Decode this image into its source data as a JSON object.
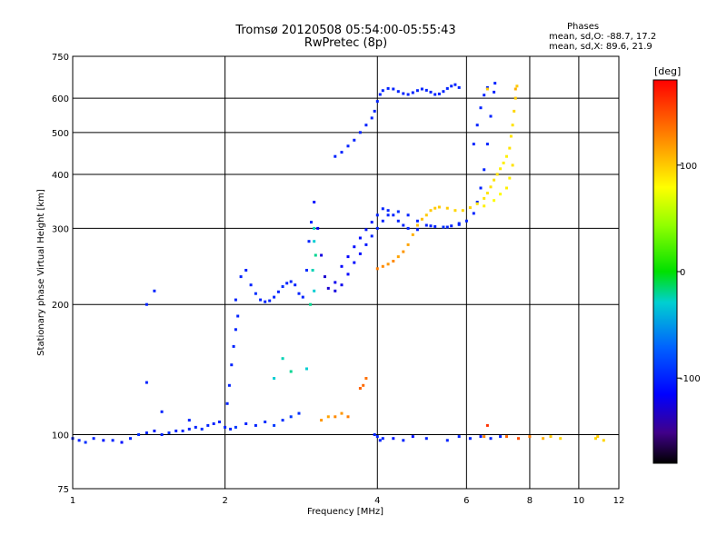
{
  "chart_data": {
    "type": "scatter",
    "title": "Tromsø 20120508 05:54:00-05:55:43",
    "subtitle": "RwPretec (8p)",
    "xlabel": "Frequency [MHz]",
    "ylabel": "Stationary phase Virtual Height [km]",
    "x_scale": "log",
    "y_scale": "log",
    "xlim": [
      1,
      12
    ],
    "ylim": [
      75,
      750
    ],
    "x_ticks": [
      1,
      2,
      4,
      6,
      8,
      10,
      12
    ],
    "y_ticks": [
      75,
      100,
      200,
      300,
      400,
      500,
      600,
      750
    ],
    "x_ticklabels": [
      "1",
      "2",
      "4",
      "6",
      "8",
      "10",
      "12"
    ],
    "y_ticklabels": [
      "75",
      "100",
      "200",
      "300",
      "400",
      "500",
      "600",
      "750"
    ],
    "grid": true,
    "stats": {
      "header": "Phases",
      "o_line": "mean, sd,O: -88.7, 17.2",
      "x_line": "mean, sd,X: 89.6, 21.9"
    },
    "colorbar": {
      "label": "[deg]",
      "range": [
        -180,
        180
      ],
      "ticks": [
        100,
        0,
        -100
      ],
      "ticklabels": [
        "100",
        "0",
        "-100"
      ],
      "colormap": "rainbow"
    },
    "series": [
      {
        "mode": "O",
        "points": [
          [
            1.0,
            98,
            -100
          ],
          [
            1.03,
            97,
            -100
          ],
          [
            1.06,
            96,
            -95
          ],
          [
            1.1,
            98,
            -100
          ],
          [
            1.15,
            97,
            -105
          ],
          [
            1.2,
            97,
            -100
          ],
          [
            1.25,
            96,
            -110
          ],
          [
            1.3,
            98,
            -100
          ],
          [
            1.35,
            100,
            -95
          ],
          [
            1.4,
            101,
            -100
          ],
          [
            1.45,
            102,
            -105
          ],
          [
            1.5,
            100,
            -100
          ],
          [
            1.55,
            101,
            -95
          ],
          [
            1.6,
            102,
            -100
          ],
          [
            1.65,
            102,
            -100
          ],
          [
            1.7,
            103,
            -100
          ],
          [
            1.75,
            104,
            -100
          ],
          [
            1.8,
            103,
            -95
          ],
          [
            1.85,
            105,
            -100
          ],
          [
            1.9,
            106,
            -100
          ],
          [
            1.95,
            107,
            -100
          ],
          [
            2.0,
            104,
            -100
          ],
          [
            2.05,
            103,
            -100
          ],
          [
            2.1,
            104,
            -90
          ],
          [
            2.2,
            106,
            -100
          ],
          [
            2.3,
            105,
            -100
          ],
          [
            2.4,
            107,
            -95
          ],
          [
            2.5,
            105,
            -90
          ],
          [
            2.6,
            108,
            -95
          ],
          [
            2.7,
            110,
            -90
          ],
          [
            2.8,
            112,
            -95
          ],
          [
            2.02,
            118,
            -100
          ],
          [
            2.04,
            130,
            -100
          ],
          [
            2.06,
            145,
            -100
          ],
          [
            2.08,
            160,
            -100
          ],
          [
            2.1,
            175,
            -100
          ],
          [
            2.12,
            188,
            -100
          ],
          [
            2.1,
            205,
            -100
          ],
          [
            2.15,
            232,
            -100
          ],
          [
            2.2,
            240,
            -100
          ],
          [
            2.25,
            222,
            -100
          ],
          [
            2.3,
            212,
            -95
          ],
          [
            2.35,
            205,
            -100
          ],
          [
            2.4,
            203,
            -100
          ],
          [
            2.45,
            204,
            -100
          ],
          [
            2.5,
            208,
            -100
          ],
          [
            2.55,
            214,
            -100
          ],
          [
            2.6,
            220,
            -95
          ],
          [
            2.65,
            224,
            -100
          ],
          [
            2.7,
            226,
            -100
          ],
          [
            2.75,
            222,
            -100
          ],
          [
            2.8,
            212,
            -100
          ],
          [
            2.85,
            208,
            -100
          ],
          [
            2.9,
            240,
            -95
          ],
          [
            2.93,
            280,
            -100
          ],
          [
            2.96,
            310,
            -100
          ],
          [
            3.0,
            345,
            -110
          ],
          [
            3.05,
            300,
            -120
          ],
          [
            3.1,
            260,
            -125
          ],
          [
            3.15,
            232,
            -130
          ],
          [
            3.2,
            218,
            -130
          ],
          [
            3.3,
            215,
            -125
          ],
          [
            3.4,
            222,
            -120
          ],
          [
            3.5,
            235,
            -115
          ],
          [
            3.6,
            250,
            -110
          ],
          [
            3.7,
            262,
            -110
          ],
          [
            3.8,
            275,
            -105
          ],
          [
            3.9,
            288,
            -100
          ],
          [
            4.0,
            300,
            -100
          ],
          [
            4.1,
            312,
            -100
          ],
          [
            4.2,
            322,
            -100
          ],
          [
            4.4,
            328,
            -95
          ],
          [
            4.6,
            322,
            -100
          ],
          [
            4.8,
            312,
            -100
          ],
          [
            5.0,
            305,
            -100
          ],
          [
            5.2,
            303,
            -100
          ],
          [
            5.4,
            302,
            -95
          ],
          [
            5.6,
            304,
            -100
          ],
          [
            5.8,
            306,
            -100
          ],
          [
            6.0,
            312,
            -100
          ],
          [
            6.2,
            325,
            -100
          ],
          [
            6.3,
            345,
            -100
          ],
          [
            6.4,
            372,
            -100
          ],
          [
            6.5,
            410,
            -100
          ],
          [
            6.6,
            470,
            -100
          ],
          [
            6.7,
            545,
            -100
          ],
          [
            6.8,
            620,
            -100
          ],
          [
            6.83,
            650,
            -100
          ],
          [
            3.3,
            225,
            -120
          ],
          [
            3.4,
            245,
            -115
          ],
          [
            3.5,
            258,
            -115
          ],
          [
            3.6,
            272,
            -110
          ],
          [
            3.7,
            285,
            -110
          ],
          [
            3.8,
            298,
            -105
          ],
          [
            3.9,
            310,
            -105
          ],
          [
            4.0,
            322,
            -100
          ],
          [
            4.1,
            333,
            -100
          ],
          [
            4.2,
            330,
            -100
          ],
          [
            4.3,
            322,
            -100
          ],
          [
            4.4,
            312,
            -100
          ],
          [
            4.5,
            305,
            -100
          ],
          [
            4.6,
            300,
            -100
          ],
          [
            4.8,
            298,
            -100
          ],
          [
            5.1,
            304,
            -100
          ],
          [
            5.5,
            302,
            -100
          ],
          [
            5.8,
            308,
            -100
          ],
          [
            3.3,
            440,
            -100
          ],
          [
            3.4,
            450,
            -100
          ],
          [
            3.5,
            465,
            -100
          ],
          [
            3.6,
            480,
            -100
          ],
          [
            3.7,
            500,
            -100
          ],
          [
            3.8,
            520,
            -100
          ],
          [
            3.9,
            540,
            -100
          ],
          [
            3.95,
            560,
            -100
          ],
          [
            4.0,
            590,
            -100
          ],
          [
            4.05,
            612,
            -100
          ],
          [
            4.1,
            625,
            -100
          ],
          [
            4.2,
            632,
            -100
          ],
          [
            4.3,
            630,
            -100
          ],
          [
            4.4,
            622,
            -100
          ],
          [
            4.5,
            615,
            -100
          ],
          [
            4.6,
            612,
            -100
          ],
          [
            4.7,
            618,
            -100
          ],
          [
            4.8,
            625,
            -100
          ],
          [
            4.9,
            630,
            -100
          ],
          [
            5.0,
            626,
            -100
          ],
          [
            5.1,
            620,
            -100
          ],
          [
            5.2,
            612,
            -100
          ],
          [
            5.3,
            614,
            -100
          ],
          [
            5.4,
            622,
            -100
          ],
          [
            5.5,
            632,
            -100
          ],
          [
            5.6,
            640,
            -100
          ],
          [
            5.7,
            645,
            -100
          ],
          [
            5.8,
            635,
            -100
          ],
          [
            6.2,
            470,
            -100
          ],
          [
            6.3,
            520,
            -100
          ],
          [
            6.4,
            570,
            -100
          ],
          [
            6.5,
            610,
            -100
          ],
          [
            6.6,
            635,
            -100
          ],
          [
            1.4,
            200,
            -100
          ],
          [
            1.45,
            215,
            -100
          ],
          [
            1.4,
            132,
            -100
          ],
          [
            1.5,
            113,
            -100
          ],
          [
            1.7,
            108,
            -100
          ],
          [
            3.95,
            100,
            -100
          ],
          [
            4.0,
            99,
            -100
          ],
          [
            4.05,
            97,
            -100
          ],
          [
            4.1,
            98,
            -100
          ],
          [
            4.3,
            98,
            -105
          ],
          [
            4.5,
            97,
            -100
          ],
          [
            4.7,
            99,
            -110
          ],
          [
            5.0,
            98,
            -100
          ],
          [
            5.5,
            97,
            -100
          ],
          [
            5.8,
            99,
            -100
          ],
          [
            6.1,
            98,
            -100
          ],
          [
            6.4,
            99,
            -105
          ],
          [
            6.7,
            98,
            -100
          ],
          [
            7.0,
            99,
            -100
          ]
        ]
      },
      {
        "mode": "X",
        "points": [
          [
            2.95,
            200,
            -20
          ],
          [
            3.0,
            215,
            -30
          ],
          [
            2.98,
            240,
            -25
          ],
          [
            3.02,
            260,
            -20
          ],
          [
            3.0,
            280,
            -30
          ],
          [
            3.0,
            300,
            -25
          ],
          [
            2.5,
            135,
            -30
          ],
          [
            2.7,
            140,
            -20
          ],
          [
            2.9,
            142,
            -30
          ],
          [
            2.6,
            150,
            -25
          ],
          [
            3.1,
            108,
            120
          ],
          [
            3.2,
            110,
            115
          ],
          [
            3.3,
            110,
            125
          ],
          [
            3.4,
            112,
            120
          ],
          [
            3.5,
            110,
            130
          ],
          [
            3.7,
            128,
            140
          ],
          [
            3.8,
            135,
            135
          ],
          [
            3.75,
            130,
            138
          ],
          [
            4.0,
            242,
            130
          ],
          [
            4.1,
            245,
            125
          ],
          [
            4.2,
            248,
            120
          ],
          [
            4.3,
            252,
            125
          ],
          [
            4.4,
            258,
            115
          ],
          [
            4.5,
            265,
            120
          ],
          [
            4.6,
            275,
            115
          ],
          [
            4.7,
            290,
            110
          ],
          [
            4.8,
            305,
            105
          ],
          [
            4.9,
            315,
            105
          ],
          [
            5.0,
            322,
            100
          ],
          [
            5.1,
            330,
            100
          ],
          [
            5.2,
            334,
            100
          ],
          [
            5.3,
            336,
            100
          ],
          [
            5.5,
            334,
            100
          ],
          [
            5.7,
            330,
            95
          ],
          [
            5.9,
            330,
            95
          ],
          [
            6.1,
            335,
            95
          ],
          [
            6.3,
            342,
            90
          ],
          [
            6.5,
            352,
            90
          ],
          [
            6.6,
            362,
            90
          ],
          [
            6.7,
            374,
            90
          ],
          [
            6.8,
            388,
            90
          ],
          [
            6.9,
            400,
            90
          ],
          [
            7.0,
            412,
            85
          ],
          [
            7.1,
            425,
            85
          ],
          [
            7.2,
            440,
            85
          ],
          [
            7.3,
            460,
            90
          ],
          [
            7.35,
            490,
            90
          ],
          [
            7.4,
            520,
            90
          ],
          [
            7.45,
            560,
            95
          ],
          [
            7.5,
            600,
            100
          ],
          [
            7.55,
            640,
            100
          ],
          [
            6.5,
            338,
            85
          ],
          [
            6.8,
            348,
            80
          ],
          [
            7.0,
            360,
            80
          ],
          [
            7.2,
            372,
            85
          ],
          [
            7.3,
            392,
            85
          ],
          [
            7.4,
            420,
            90
          ],
          [
            6.5,
            99,
            130
          ],
          [
            7.2,
            99,
            140
          ],
          [
            7.6,
            98,
            150
          ],
          [
            8.0,
            99,
            130
          ],
          [
            8.5,
            98,
            110
          ],
          [
            8.8,
            99,
            100
          ],
          [
            9.2,
            98,
            95
          ],
          [
            10.8,
            98,
            95
          ],
          [
            10.9,
            99,
            100
          ],
          [
            11.2,
            97,
            95
          ],
          [
            6.6,
            105,
            160
          ],
          [
            7.5,
            630,
            110
          ],
          [
            6.6,
            630,
            100
          ]
        ]
      }
    ]
  }
}
